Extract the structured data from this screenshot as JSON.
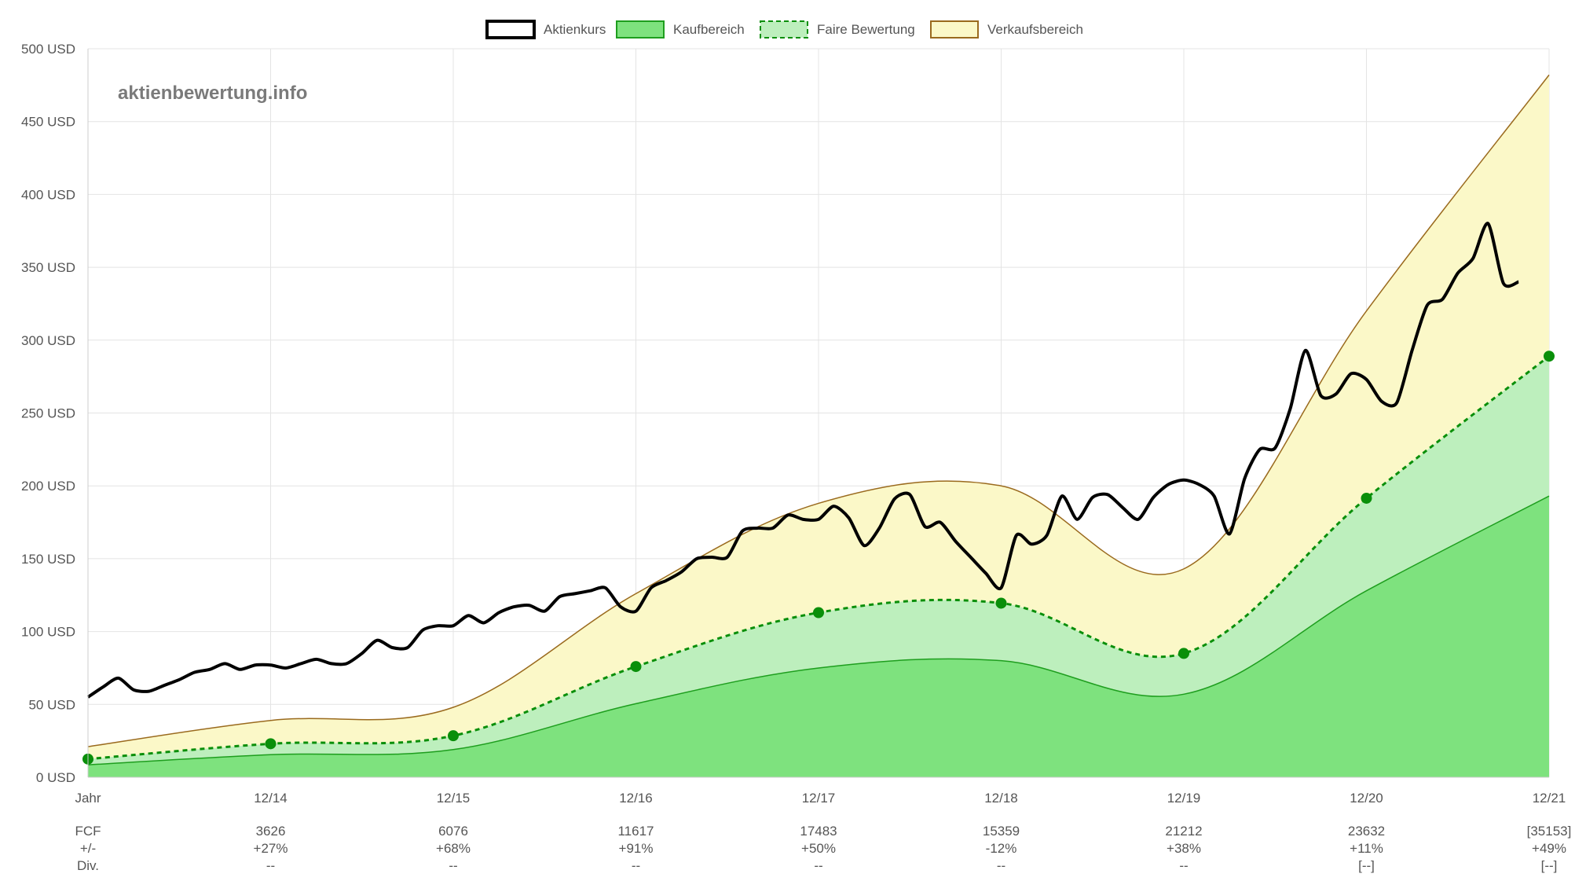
{
  "watermark": "aktienbewertung.info",
  "legend": [
    {
      "label": "Aktienkurs",
      "icon": "price-line-swatch",
      "fill": "#ffffff",
      "stroke": "#000000",
      "dashed": false
    },
    {
      "label": "Kaufbereich",
      "icon": "buy-zone-swatch",
      "fill": "#7ee27e",
      "stroke": "#1e9e1e",
      "dashed": false
    },
    {
      "label": "Faire Bewertung",
      "icon": "fair-value-swatch",
      "fill": "#bdefbd",
      "stroke": "#0a8f0a",
      "dashed": true
    },
    {
      "label": "Verkaufsbereich",
      "icon": "sell-zone-swatch",
      "fill": "#fbf8c8",
      "stroke": "#9a6a1e",
      "dashed": false
    }
  ],
  "colors": {
    "price": "#000000",
    "buy_fill": "#7ee27e",
    "buy_line": "#1e9e1e",
    "fair_fill": "#bdefbd",
    "fair_line": "#0a8f0a",
    "fair_point": "#0a8f0a",
    "sell_fill": "#fbf8c8",
    "sell_line": "#9a6a1e",
    "grid": "#e4e4e4"
  },
  "chart_data": {
    "type": "area",
    "y_ticks": [
      "0 USD",
      "50 USD",
      "100 USD",
      "150 USD",
      "200 USD",
      "250 USD",
      "300 USD",
      "350 USD",
      "400 USD",
      "450 USD",
      "500 USD"
    ],
    "ylim": [
      0,
      500
    ],
    "x_ticks": [
      "Jahr",
      "12/14",
      "12/15",
      "12/16",
      "12/17",
      "12/18",
      "12/19",
      "12/20",
      "12/21"
    ],
    "xlim": [
      2013.917,
      2021.917
    ],
    "grid": true,
    "legend_position": "top-center",
    "fair_value": {
      "x": [
        2013.917,
        2014.917,
        2015.917,
        2016.917,
        2017.917,
        2018.917,
        2019.917,
        2020.917,
        2021.917
      ],
      "y": [
        12.5,
        23,
        28.5,
        76,
        113,
        119.5,
        85,
        191.5,
        289
      ]
    },
    "buy_zone_upper": {
      "x": [
        2013.917,
        2014.917,
        2015.917,
        2016.917,
        2017.917,
        2018.917,
        2019.917,
        2020.917,
        2021.917
      ],
      "y": [
        8.5,
        15.5,
        19,
        50.5,
        75,
        80,
        57,
        128,
        193
      ]
    },
    "sell_zone_upper": {
      "x": [
        2013.917,
        2014.917,
        2015.917,
        2016.917,
        2017.917,
        2018.917,
        2019.917,
        2020.917,
        2021.917
      ],
      "y": [
        21,
        39,
        48,
        126,
        188,
        200,
        143,
        320,
        482
      ]
    },
    "price": {
      "x": [
        2013.917,
        2014.0,
        2014.083,
        2014.167,
        2014.25,
        2014.333,
        2014.417,
        2014.5,
        2014.583,
        2014.667,
        2014.75,
        2014.833,
        2014.917,
        2015.0,
        2015.083,
        2015.167,
        2015.25,
        2015.333,
        2015.417,
        2015.5,
        2015.583,
        2015.667,
        2015.75,
        2015.833,
        2015.917,
        2016.0,
        2016.083,
        2016.167,
        2016.25,
        2016.333,
        2016.417,
        2016.5,
        2016.583,
        2016.667,
        2016.75,
        2016.833,
        2016.917,
        2017.0,
        2017.083,
        2017.167,
        2017.25,
        2017.333,
        2017.417,
        2017.5,
        2017.583,
        2017.667,
        2017.75,
        2017.833,
        2017.917,
        2018.0,
        2018.083,
        2018.167,
        2018.25,
        2018.333,
        2018.417,
        2018.5,
        2018.583,
        2018.667,
        2018.75,
        2018.833,
        2018.917,
        2019.0,
        2019.083,
        2019.167,
        2019.25,
        2019.333,
        2019.417,
        2019.5,
        2019.583,
        2019.667,
        2019.75,
        2019.833,
        2019.917,
        2020.0,
        2020.083,
        2020.167,
        2020.25,
        2020.333,
        2020.417,
        2020.5,
        2020.583,
        2020.667,
        2020.75,
        2020.833,
        2020.917,
        2021.0,
        2021.083,
        2021.167,
        2021.25,
        2021.333,
        2021.417,
        2021.5,
        2021.583,
        2021.667,
        2021.75
      ],
      "y": [
        55,
        62,
        68,
        60,
        59,
        63,
        67,
        72,
        74,
        78,
        74,
        77,
        77,
        75,
        78,
        81,
        78,
        78,
        85,
        94,
        89,
        89,
        101,
        104,
        104,
        111,
        106,
        113,
        117,
        118,
        114,
        124,
        126,
        128,
        130,
        117,
        114,
        130,
        135,
        141,
        150,
        151,
        151,
        169,
        171,
        171,
        180,
        177,
        177,
        186,
        178,
        159,
        171,
        191,
        194,
        172,
        175,
        162,
        151,
        140,
        130,
        166,
        160,
        166,
        193,
        177,
        192,
        194,
        185,
        177,
        192,
        201,
        204,
        201,
        193,
        167,
        205,
        225,
        226,
        253,
        293,
        262,
        263,
        277,
        273,
        258,
        257,
        293,
        324,
        328,
        346,
        356,
        380,
        339,
        340
      ]
    },
    "table": {
      "rows": [
        {
          "label": "FCF",
          "values": [
            "3626",
            "6076",
            "11617",
            "17483",
            "15359",
            "21212",
            "23632",
            "[35153]"
          ]
        },
        {
          "label": "+/-",
          "values": [
            "+27%",
            "+68%",
            "+91%",
            "+50%",
            "-12%",
            "+38%",
            "+11%",
            "+49%"
          ]
        },
        {
          "label": "Div.",
          "values": [
            "--",
            "--",
            "--",
            "--",
            "--",
            "--",
            "[--]",
            "[--]"
          ]
        }
      ]
    }
  }
}
